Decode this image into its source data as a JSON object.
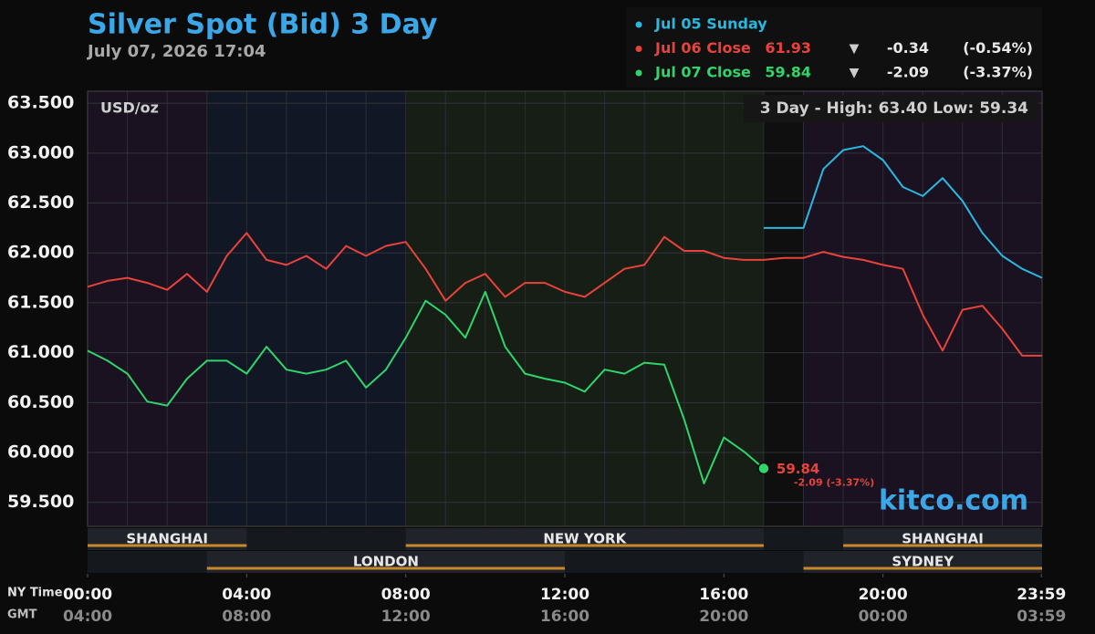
{
  "chart_data": {
    "type": "line",
    "title": "Silver Spot (Bid) 3 Day",
    "subtitle": "July 07, 2026 17:04",
    "unit_label": "USD/oz",
    "range_text": "3 Day - High: 63.40  Low: 59.34",
    "watermark": "kitco.com",
    "x_axis_label": "NY Time",
    "x2_axis_label": "GMT",
    "end_label": "-2.09 (-3.37%)",
    "x": [
      0,
      0.5,
      1,
      1.5,
      2,
      2.5,
      3,
      3.5,
      4,
      4.5,
      5,
      5.5,
      6,
      6.5,
      7,
      7.5,
      8,
      8.5,
      9,
      9.5,
      10,
      10.5,
      11,
      11.5,
      12,
      12.5,
      13,
      13.5,
      14,
      14.5,
      15,
      15.5,
      16,
      16.5,
      17,
      17.5,
      18,
      18.5,
      19,
      19.5,
      20,
      20.5,
      21,
      21.5,
      22,
      22.5,
      23,
      23.5,
      24
    ],
    "series": [
      {
        "name": "Jul 05 Sunday",
        "color": "#29b8e0",
        "values": [
          null,
          null,
          null,
          null,
          null,
          null,
          null,
          null,
          null,
          null,
          null,
          null,
          null,
          null,
          null,
          null,
          null,
          null,
          null,
          null,
          null,
          null,
          null,
          null,
          null,
          null,
          null,
          null,
          null,
          null,
          null,
          null,
          null,
          null,
          62.25,
          62.25,
          62.25,
          62.84,
          63.03,
          63.07,
          62.93,
          62.66,
          62.57,
          62.75,
          62.52,
          62.2,
          61.97,
          61.84,
          61.75
        ]
      },
      {
        "name": "Jul 06 Close",
        "color": "#e8433a",
        "close": 61.93,
        "arrow": "▼",
        "change": -0.34,
        "change_pct": "(-0.54%)",
        "values": [
          61.66,
          61.72,
          61.75,
          61.7,
          61.63,
          61.79,
          61.61,
          61.97,
          62.2,
          61.93,
          61.88,
          61.97,
          61.84,
          62.07,
          61.97,
          62.07,
          62.11,
          61.84,
          61.52,
          61.7,
          61.79,
          61.56,
          61.7,
          61.7,
          61.61,
          61.56,
          61.7,
          61.84,
          61.88,
          62.16,
          62.02,
          62.02,
          61.95,
          61.93,
          61.93,
          61.95,
          61.95,
          62.01,
          61.96,
          61.93,
          61.88,
          61.84,
          61.38,
          61.02,
          61.43,
          61.47,
          61.24,
          60.97,
          60.97
        ]
      },
      {
        "name": "Jul 07 Close",
        "color": "#2fd46a",
        "close": 59.84,
        "arrow": "▼",
        "change": -2.09,
        "change_pct": "(-3.37%)",
        "values": [
          61.02,
          60.92,
          60.79,
          60.51,
          60.47,
          60.74,
          60.92,
          60.92,
          60.79,
          61.06,
          60.83,
          60.79,
          60.83,
          60.92,
          60.65,
          60.83,
          61.15,
          61.52,
          61.38,
          61.15,
          61.61,
          61.06,
          60.79,
          60.74,
          60.7,
          60.61,
          60.83,
          60.79,
          60.9,
          60.88,
          60.33,
          59.69,
          60.15,
          60.01,
          59.84,
          null,
          null,
          null,
          null,
          null,
          null,
          null,
          null,
          null,
          null,
          null,
          null,
          null,
          null
        ]
      }
    ],
    "xlim": [
      0,
      24
    ],
    "ylim": [
      59.26,
      63.62
    ],
    "xticks": [
      {
        "value": 0,
        "label": "00:00"
      },
      {
        "value": 4,
        "label": "04:00"
      },
      {
        "value": 8,
        "label": "08:00"
      },
      {
        "value": 12,
        "label": "12:00"
      },
      {
        "value": 16,
        "label": "16:00"
      },
      {
        "value": 20,
        "label": "20:00"
      },
      {
        "value": 23.983,
        "label": "23:59"
      }
    ],
    "x2tick_labels": [
      "04:00",
      "08:00",
      "12:00",
      "16:00",
      "20:00",
      "00:00",
      "03:59"
    ],
    "yticks": [
      {
        "value": 59.5,
        "label": "59.500"
      },
      {
        "value": 60,
        "label": "60.000"
      },
      {
        "value": 60.5,
        "label": "60.500"
      },
      {
        "value": 61,
        "label": "61.000"
      },
      {
        "value": 61.5,
        "label": "61.500"
      },
      {
        "value": 62,
        "label": "62.000"
      },
      {
        "value": 62.5,
        "label": "62.500"
      },
      {
        "value": 63,
        "label": "63.000"
      },
      {
        "value": 63.5,
        "label": "63.500"
      }
    ],
    "grid": true,
    "minor_grid_step": 1,
    "sessions": [
      {
        "name": "SHANGHAI",
        "start": 0,
        "end": 4,
        "row": 1
      },
      {
        "name": "NEW YORK",
        "start": 8,
        "end": 17,
        "row": 1
      },
      {
        "name": "SHANGHAI",
        "start": 19,
        "end": 24,
        "row": 1
      },
      {
        "name": "LONDON",
        "start": 3,
        "end": 12,
        "row": 2
      },
      {
        "name": "SYDNEY",
        "start": 18,
        "end": 24,
        "row": 2
      }
    ]
  }
}
